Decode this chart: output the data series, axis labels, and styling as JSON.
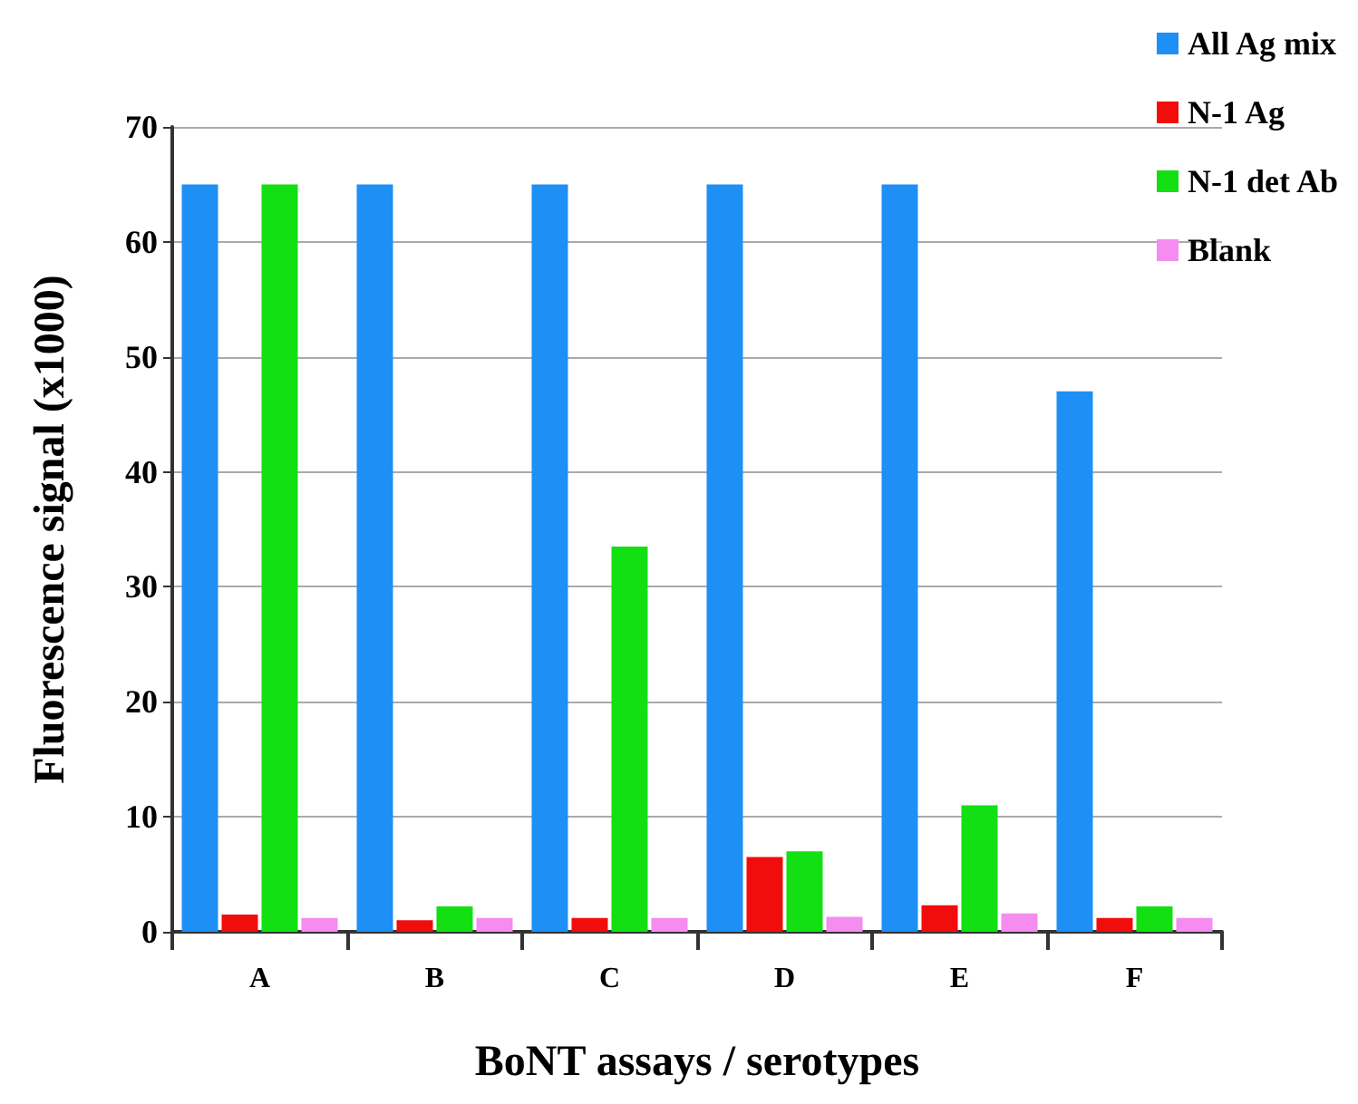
{
  "chart_data": {
    "type": "bar",
    "xlabel": "BoNT assays / serotypes",
    "ylabel": "Fluorescence signal (x1000)",
    "categories": [
      "A",
      "B",
      "C",
      "D",
      "E",
      "F"
    ],
    "series": [
      {
        "name": "All Ag mix",
        "color": "#1e8ff5",
        "values": [
          65,
          65,
          65,
          65,
          65,
          47
        ]
      },
      {
        "name": "N-1 Ag",
        "color": "#f20d0d",
        "values": [
          1.5,
          1,
          1.2,
          6.5,
          2.3,
          1.2
        ]
      },
      {
        "name": "N-1 det Ab",
        "color": "#12e012",
        "values": [
          65,
          2.2,
          33.5,
          7,
          11,
          2.2
        ]
      },
      {
        "name": "Blank",
        "color": "#f58cf0",
        "values": [
          1.2,
          1.2,
          1.2,
          1.3,
          1.6,
          1.2
        ]
      }
    ],
    "ylim": [
      0,
      70
    ],
    "yticks": [
      0,
      10,
      20,
      30,
      40,
      50,
      60,
      70
    ],
    "grid": "y",
    "legend": "top right"
  }
}
